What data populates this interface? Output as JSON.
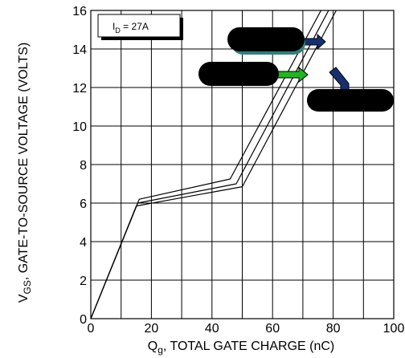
{
  "chart_data": {
    "type": "line",
    "xlabel": {
      "main": "Q",
      "sub": "g",
      "rest": ", TOTAL GATE CHARGE (nC)"
    },
    "ylabel": {
      "main": "V",
      "sub": "GS",
      "rest": ", GATE-TO-SOURCE VOLTAGE (VOLTS)"
    },
    "xlim": [
      0,
      100
    ],
    "ylim": [
      0,
      16
    ],
    "xticks": [
      "0",
      "20",
      "40",
      "60",
      "80",
      "100"
    ],
    "yticks": [
      "0",
      "2",
      "4",
      "6",
      "8",
      "10",
      "12",
      "14",
      "16"
    ],
    "grid": true,
    "annotation": {
      "main": "I",
      "sub": "D",
      "rest": " = 27A"
    },
    "series": [
      {
        "x": [
          0,
          16,
          46,
          76
        ],
        "y": [
          0,
          6.2,
          7.25,
          16
        ]
      },
      {
        "x": [
          0,
          15.5,
          48,
          78.5
        ],
        "y": [
          0,
          6.0,
          7.0,
          16
        ]
      },
      {
        "x": [
          0,
          15,
          50,
          81
        ],
        "y": [
          0,
          5.85,
          6.85,
          16
        ]
      }
    ],
    "callouts": [
      {
        "color": "#000000",
        "arrow_color": "#16306f"
      },
      {
        "color": "#000000",
        "arrow_color": "#1fb51f"
      },
      {
        "color": "#000000",
        "arrow_color": "#16306f"
      }
    ]
  }
}
